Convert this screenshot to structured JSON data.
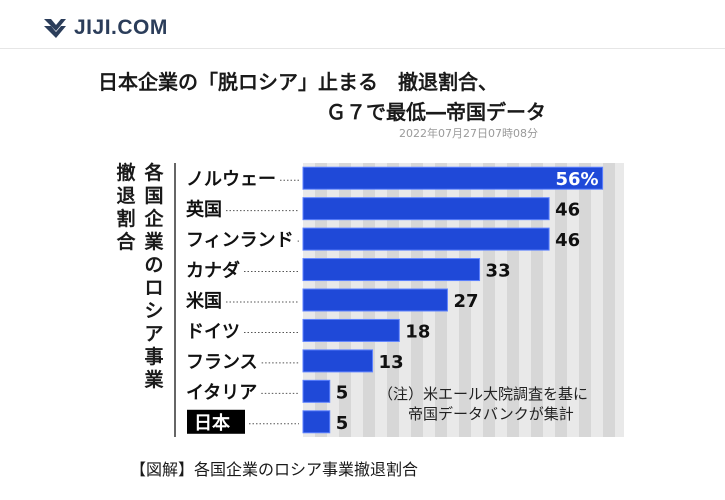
{
  "site": {
    "logo_text": "JIJI.COM",
    "logo_icon": "jiji-chevron-icon"
  },
  "article": {
    "title_line1": "日本企業の「脱ロシア」止まる　撤退割合、",
    "title_line2": "Ｇ７で最低―帝国データ",
    "timestamp": "2022年07月27日07時08分",
    "caption": "【図解】各国企業のロシア事業撤退割合"
  },
  "chart_data": {
    "type": "bar",
    "orientation": "horizontal",
    "ylabel_lines": [
      "撤退割合",
      "各国企業のロシア事業"
    ],
    "categories": [
      "ノルウェー",
      "英国",
      "フィンランド",
      "カナダ",
      "米国",
      "ドイツ",
      "フランス",
      "イタリア",
      "日本"
    ],
    "values": [
      56,
      46,
      46,
      33,
      27,
      18,
      13,
      5,
      5
    ],
    "value_labels": [
      "56%",
      "46",
      "46",
      "33",
      "27",
      "18",
      "13",
      "5",
      "5"
    ],
    "xlim": [
      0,
      60
    ],
    "highlight_category": "日本",
    "grid": true,
    "legend": "none",
    "note_lines": [
      "（注）米エール大院調査を基に",
      "帝国データバンクが集計"
    ],
    "colors": {
      "bar": "#1f49d8",
      "bar_stroke": "#5f83ff",
      "stripe_light": "#e9e9e9",
      "stripe_dark": "#d7d7d7",
      "highlight_bg": "#000000",
      "highlight_text": "#ffffff",
      "axis": "#333333"
    }
  }
}
